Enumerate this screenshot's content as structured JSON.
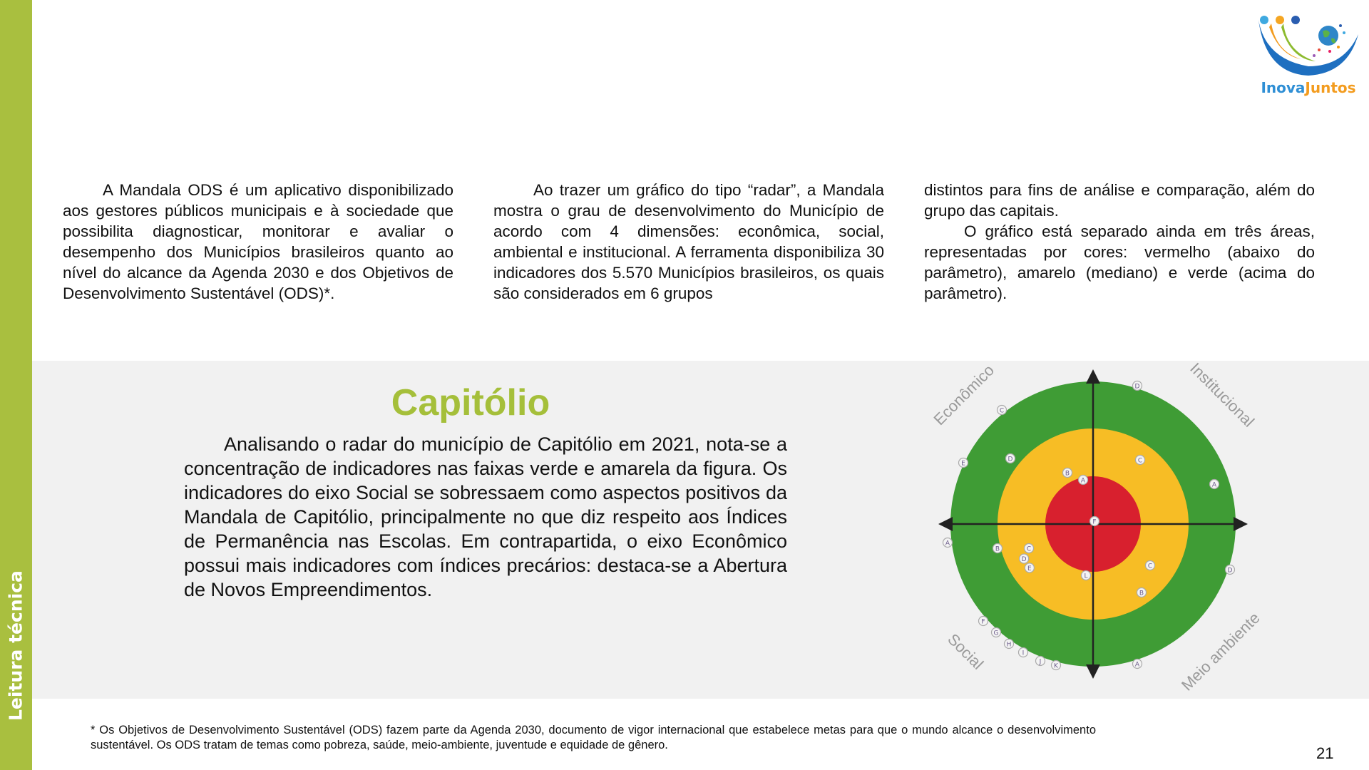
{
  "sidebar": {
    "label": "Leitura técnica",
    "color": "#a9bf3f"
  },
  "logo": {
    "text_part1": "Inova",
    "text_part2": "Juntos"
  },
  "intro": {
    "col1": "A Mandala ODS é um aplicativo disponibilizado aos gestores públicos municipais e à sociedade que possibilita diagnosticar, monitorar e avaliar o desempenho dos Municípios brasileiros quanto ao nível do alcance da Agenda 2030 e dos Objetivos de Desenvolvimento Sustentável (ODS)*.",
    "col2": "Ao trazer um gráfico do tipo “radar”, a Mandala mostra o grau de desenvolvimento do Município de acordo com 4 dimensões: econômica, social, ambiental e institucional. A ferramenta disponibiliza 30 indicadores dos 5.570 Municípios brasileiros, os quais são considerados em 6 grupos",
    "col3a": "distintos para fins de análise e comparação, além do grupo das capitais.",
    "col3b": "O gráfico está separado ainda em três áreas, representadas por cores: vermelho (abaixo do parâmetro), amarelo (mediano) e verde (acima do parâmetro)."
  },
  "section": {
    "title": "Capitólio",
    "title_color": "#a5bf3a",
    "paragraph": "Analisando o radar do município de Capitólio em 2021, nota-se a concentração de indicadores nas faixas verde e amarela da figura. Os indicadores do eixo Social se sobressaem como aspectos positivos da Mandala de Capitólio, principalmente no que diz respeito aos Índices de Permanência nas Escolas. Em contrapartida, o eixo Econômico possui mais indicadores com índices precários: destaca-se a Abertura de Novos Empreendimentos."
  },
  "chart_data": {
    "type": "scatter",
    "subtype": "radar-mandala",
    "quadrant_labels": [
      "Econômico",
      "Institucional",
      "Social",
      "Meio ambiente"
    ],
    "zones": [
      {
        "name": "vermelho",
        "color": "#d8202e",
        "outer": 0.335
      },
      {
        "name": "amarelo",
        "color": "#f7bd25",
        "outer": 0.67
      },
      {
        "name": "verde",
        "color": "#3f9c35",
        "outer": 1.0
      }
    ],
    "points": [
      {
        "group": "Econômico",
        "label": "C",
        "x": -0.64,
        "y": 0.8
      },
      {
        "group": "Econômico",
        "label": "E",
        "x": -0.91,
        "y": 0.43
      },
      {
        "group": "Econômico",
        "label": "D",
        "x": -0.58,
        "y": 0.46
      },
      {
        "group": "Econômico",
        "label": "B",
        "x": -0.18,
        "y": 0.36
      },
      {
        "group": "Econômico",
        "label": "A",
        "x": -0.07,
        "y": 0.31
      },
      {
        "group": "Institucional",
        "label": "D",
        "x": 0.31,
        "y": 0.97
      },
      {
        "group": "Institucional",
        "label": "C",
        "x": 0.33,
        "y": 0.45
      },
      {
        "group": "Institucional",
        "label": "A",
        "x": 0.85,
        "y": 0.28
      },
      {
        "group": "Institucional",
        "label": "F",
        "x": 0.01,
        "y": 0.02
      },
      {
        "group": "Social",
        "label": "A",
        "x": -1.02,
        "y": -0.13
      },
      {
        "group": "Social",
        "label": "B",
        "x": -0.67,
        "y": -0.17
      },
      {
        "group": "Social",
        "label": "C",
        "x": -0.45,
        "y": -0.17
      },
      {
        "group": "Social",
        "label": "D",
        "x": -0.48,
        "y": -0.25
      },
      {
        "group": "Social",
        "label": "E",
        "x": -0.45,
        "y": -0.3
      },
      {
        "group": "Social",
        "label": "F",
        "x": -0.77,
        "y": -0.68
      },
      {
        "group": "Social",
        "label": "G",
        "x": -0.68,
        "y": -0.76
      },
      {
        "group": "Social",
        "label": "H",
        "x": -0.59,
        "y": -0.84
      },
      {
        "group": "Social",
        "label": "I",
        "x": -0.49,
        "y": -0.9
      },
      {
        "group": "Social",
        "label": "J",
        "x": -0.37,
        "y": -0.96
      },
      {
        "group": "Social",
        "label": "K",
        "x": -0.26,
        "y": -0.99
      },
      {
        "group": "Social",
        "label": "L",
        "x": -0.05,
        "y": -0.36
      },
      {
        "group": "Meio ambiente",
        "label": "C",
        "x": 0.4,
        "y": -0.29
      },
      {
        "group": "Meio ambiente",
        "label": "B",
        "x": 0.34,
        "y": -0.48
      },
      {
        "group": "Meio ambiente",
        "label": "D",
        "x": 0.96,
        "y": -0.32
      },
      {
        "group": "Meio ambiente",
        "label": "A",
        "x": 0.31,
        "y": -0.98
      }
    ]
  },
  "footnote": "* Os Objetivos de Desenvolvimento Sustentável (ODS) fazem parte da Agenda 2030, documento de vigor internacional que estabelece metas para que o mundo alcance o desenvolvimento sustentável. Os ODS tratam de temas como pobreza, saúde, meio-ambiente, juventude e equidade de gênero.",
  "page_number": "21"
}
